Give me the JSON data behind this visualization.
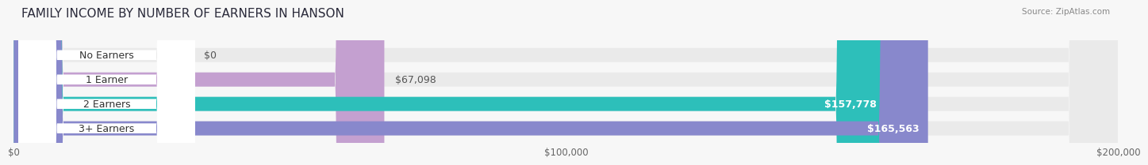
{
  "title": "FAMILY INCOME BY NUMBER OF EARNERS IN HANSON",
  "source": "Source: ZipAtlas.com",
  "categories": [
    "No Earners",
    "1 Earner",
    "2 Earners",
    "3+ Earners"
  ],
  "values": [
    0,
    67098,
    157778,
    165563
  ],
  "bar_colors": [
    "#a8c4e0",
    "#c4a0d0",
    "#2dbfba",
    "#8888cc"
  ],
  "bar_bg_color": "#eaeaea",
  "x_max": 200000,
  "x_ticks": [
    0,
    100000,
    200000
  ],
  "x_tick_labels": [
    "$0",
    "$100,000",
    "$200,000"
  ],
  "background_color": "#f7f7f7",
  "title_fontsize": 11,
  "bar_height": 0.58,
  "label_fontsize": 9,
  "value_threshold": 100000
}
